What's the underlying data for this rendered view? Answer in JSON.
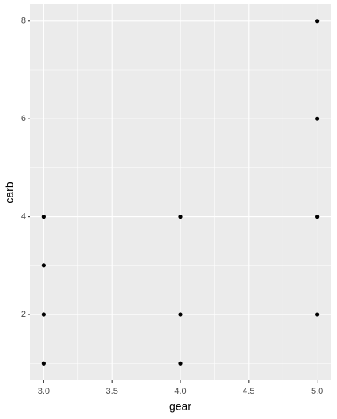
{
  "chart_data": {
    "type": "scatter",
    "x_label": "gear",
    "y_label": "carb",
    "x": [
      3,
      3,
      3,
      3,
      4,
      4,
      4,
      5,
      5,
      5,
      5
    ],
    "values": [
      1,
      2,
      3,
      4,
      1,
      2,
      4,
      2,
      4,
      6,
      8
    ],
    "color": "#000000",
    "xlim": [
      2.9,
      5.1
    ],
    "ylim": [
      0.65,
      8.35
    ],
    "xticks": [
      {
        "value": 3,
        "label": "3.0"
      },
      {
        "value": 3.5,
        "label": "3.5"
      },
      {
        "value": 4,
        "label": "4.0"
      },
      {
        "value": 4.5,
        "label": "4.5"
      },
      {
        "value": 5,
        "label": "5.0"
      }
    ],
    "yticks": [
      2,
      4,
      6,
      8
    ],
    "grid": true
  }
}
